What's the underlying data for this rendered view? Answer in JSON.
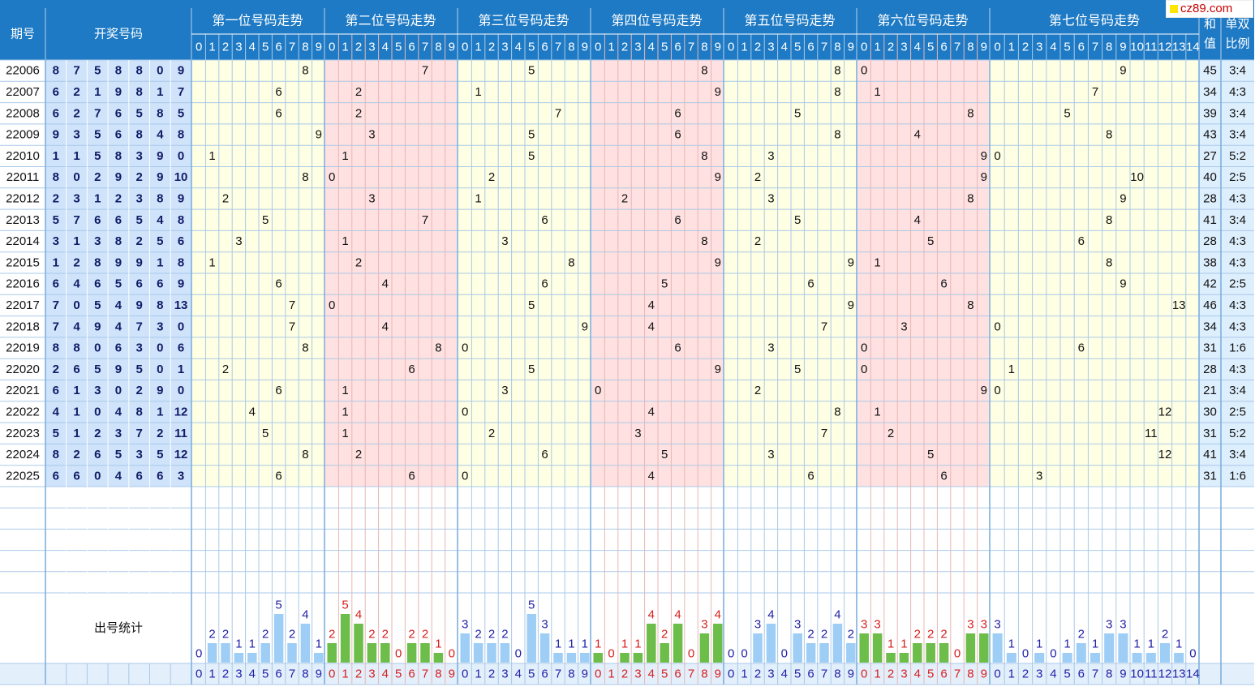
{
  "header": {
    "issue_label": "期号",
    "draw_label": "开奖号码",
    "groups": [
      "第一位号码走势",
      "第二位号码走势",
      "第三位号码走势",
      "第四位号码走势",
      "第五位号码走势",
      "第六位号码走势",
      "第七位号码走势"
    ],
    "sum_label": "和值",
    "ratio_label": "单双比例"
  },
  "stats_label": "出号统计",
  "watermark": "cz89.com",
  "colors": {
    "header_bg": "#1e7ac4",
    "draw_bg": "#cfe3fb",
    "yellow": "#ffffe3",
    "pink": "#ffe1e1",
    "blue_bar": "#9ecdf5",
    "green_bar": "#6cbd4a",
    "stat_blue": "#1f1fa8",
    "stat_red": "#d81e1e"
  },
  "chart_data": {
    "type": "table",
    "rows": [
      {
        "issue": "22006",
        "draw": [
          8,
          7,
          5,
          8,
          8,
          0,
          9
        ],
        "sum": 45,
        "ratio": "3:4"
      },
      {
        "issue": "22007",
        "draw": [
          6,
          2,
          1,
          9,
          8,
          1,
          7
        ],
        "sum": 34,
        "ratio": "4:3"
      },
      {
        "issue": "22008",
        "draw": [
          6,
          2,
          7,
          6,
          5,
          8,
          5
        ],
        "sum": 39,
        "ratio": "3:4"
      },
      {
        "issue": "22009",
        "draw": [
          9,
          3,
          5,
          6,
          8,
          4,
          8
        ],
        "sum": 43,
        "ratio": "3:4"
      },
      {
        "issue": "22010",
        "draw": [
          1,
          1,
          5,
          8,
          3,
          9,
          0
        ],
        "sum": 27,
        "ratio": "5:2"
      },
      {
        "issue": "22011",
        "draw": [
          8,
          0,
          2,
          9,
          2,
          9,
          10
        ],
        "sum": 40,
        "ratio": "2:5"
      },
      {
        "issue": "22012",
        "draw": [
          2,
          3,
          1,
          2,
          3,
          8,
          9
        ],
        "sum": 28,
        "ratio": "4:3"
      },
      {
        "issue": "22013",
        "draw": [
          5,
          7,
          6,
          6,
          5,
          4,
          8
        ],
        "sum": 41,
        "ratio": "3:4"
      },
      {
        "issue": "22014",
        "draw": [
          3,
          1,
          3,
          8,
          2,
          5,
          6
        ],
        "sum": 28,
        "ratio": "4:3"
      },
      {
        "issue": "22015",
        "draw": [
          1,
          2,
          8,
          9,
          9,
          1,
          8
        ],
        "sum": 38,
        "ratio": "4:3"
      },
      {
        "issue": "22016",
        "draw": [
          6,
          4,
          6,
          5,
          6,
          6,
          9
        ],
        "sum": 42,
        "ratio": "2:5"
      },
      {
        "issue": "22017",
        "draw": [
          7,
          0,
          5,
          4,
          9,
          8,
          13
        ],
        "sum": 46,
        "ratio": "4:3"
      },
      {
        "issue": "22018",
        "draw": [
          7,
          4,
          9,
          4,
          7,
          3,
          0
        ],
        "sum": 34,
        "ratio": "4:3"
      },
      {
        "issue": "22019",
        "draw": [
          8,
          8,
          0,
          6,
          3,
          0,
          6
        ],
        "sum": 31,
        "ratio": "1:6"
      },
      {
        "issue": "22020",
        "draw": [
          2,
          6,
          5,
          9,
          5,
          0,
          1
        ],
        "sum": 28,
        "ratio": "4:3"
      },
      {
        "issue": "22021",
        "draw": [
          6,
          1,
          3,
          0,
          2,
          9,
          0
        ],
        "sum": 21,
        "ratio": "3:4"
      },
      {
        "issue": "22022",
        "draw": [
          4,
          1,
          0,
          4,
          8,
          1,
          12
        ],
        "sum": 30,
        "ratio": "2:5"
      },
      {
        "issue": "22023",
        "draw": [
          5,
          1,
          2,
          3,
          7,
          2,
          11
        ],
        "sum": 31,
        "ratio": "5:2"
      },
      {
        "issue": "22024",
        "draw": [
          8,
          2,
          6,
          5,
          3,
          5,
          12
        ],
        "sum": 41,
        "ratio": "3:4"
      },
      {
        "issue": "22025",
        "draw": [
          6,
          6,
          0,
          4,
          6,
          6,
          3
        ],
        "sum": 31,
        "ratio": "1:6"
      }
    ],
    "digit_labels": {
      "ten": [
        "0",
        "1",
        "2",
        "3",
        "4",
        "5",
        "6",
        "7",
        "8",
        "9"
      ],
      "fifteen": [
        "0",
        "1",
        "2",
        "3",
        "4",
        "5",
        "6",
        "7",
        "8",
        "9",
        "10",
        "11",
        "12",
        "13",
        "14"
      ]
    },
    "counts": [
      [
        0,
        2,
        2,
        1,
        1,
        2,
        5,
        2,
        4,
        1
      ],
      [
        2,
        5,
        4,
        2,
        2,
        0,
        2,
        2,
        1,
        0
      ],
      [
        3,
        2,
        2,
        2,
        0,
        5,
        3,
        1,
        1,
        1
      ],
      [
        1,
        0,
        1,
        1,
        4,
        2,
        4,
        0,
        3,
        4
      ],
      [
        0,
        0,
        3,
        4,
        0,
        3,
        2,
        2,
        4,
        2
      ],
      [
        3,
        3,
        1,
        1,
        2,
        2,
        2,
        0,
        3,
        3
      ],
      [
        3,
        1,
        0,
        1,
        0,
        1,
        2,
        1,
        3,
        3,
        1,
        1,
        2,
        1,
        0
      ]
    ]
  }
}
